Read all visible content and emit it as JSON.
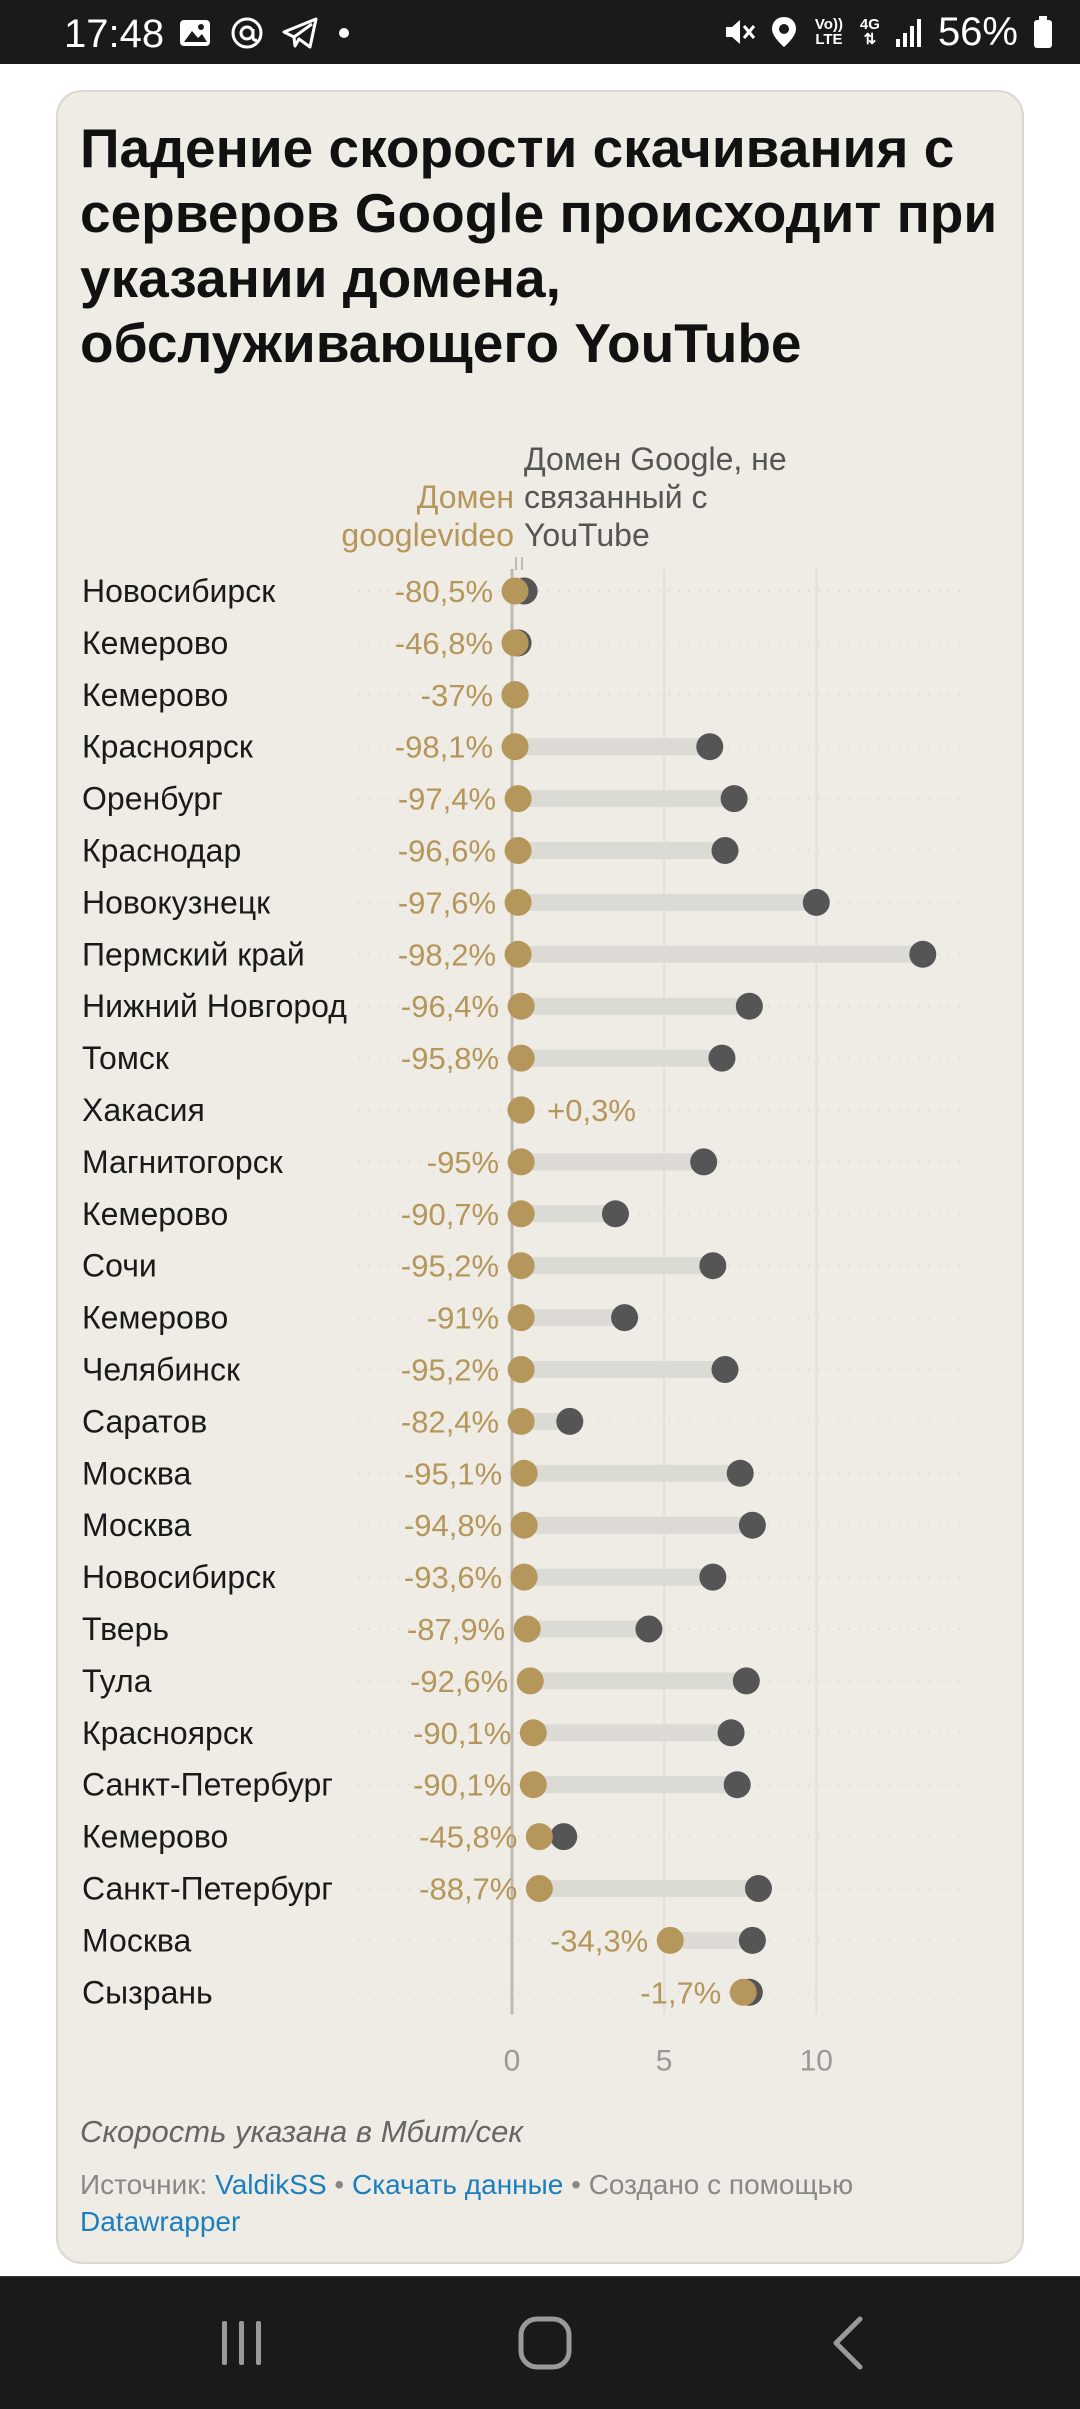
{
  "status_bar": {
    "time": "17:48",
    "battery": "56%",
    "left_icons": [
      "image-icon",
      "at-icon",
      "telegram-icon",
      "dot-icon"
    ],
    "right_icons": [
      "mute-icon",
      "location-icon",
      "volte-icon",
      "4g-icon",
      "signal-icon",
      "battery-icon"
    ],
    "volte_label": "Vo)) LTE",
    "net_label": "4G"
  },
  "card": {
    "title": "Падение скорости скачивания с серверов Google происходит при указании домена, обслуживающего YouTube",
    "legend_gold": "Домен googlevideo",
    "legend_gray": "Домен Google, не связанный с YouTube",
    "note": "Скорость указана в Мбит/сек",
    "source_prefix": "Источник:",
    "source_link": "ValdikSS",
    "sep1": "•",
    "download_link": "Скачать данные",
    "sep2": "•",
    "made_with": "Создано с помощью",
    "datawrapper_link": "Datawrapper"
  },
  "chart_data": {
    "type": "dot-range",
    "xlim": [
      0,
      14
    ],
    "x_ticks": [
      "0",
      "5",
      "10"
    ],
    "x_tick_values": [
      0,
      5,
      10
    ],
    "colors": {
      "googlevideo": "#b5965b",
      "google": "#555555",
      "range": "#dcdad4",
      "grid": "#e2dfd8"
    },
    "series": [
      {
        "name": "Домен googlevideo",
        "key": "googlevideo"
      },
      {
        "name": "Домен Google, не связанный с YouTube",
        "key": "google"
      }
    ],
    "rows": [
      {
        "city": "Новосибирск",
        "pct": "-80,5%",
        "googlevideo": 0.1,
        "google": 0.4
      },
      {
        "city": "Кемерово",
        "pct": "-46,8%",
        "googlevideo": 0.1,
        "google": 0.2
      },
      {
        "city": "Кемерово",
        "pct": "-37%",
        "googlevideo": 0.1,
        "google": 0.1
      },
      {
        "city": "Красноярск",
        "pct": "-98,1%",
        "googlevideo": 0.1,
        "google": 6.5
      },
      {
        "city": "Оренбург",
        "pct": "-97,4%",
        "googlevideo": 0.2,
        "google": 7.3
      },
      {
        "city": "Краснодар",
        "pct": "-96,6%",
        "googlevideo": 0.2,
        "google": 7.0
      },
      {
        "city": "Новокузнецк",
        "pct": "-97,6%",
        "googlevideo": 0.2,
        "google": 10.0
      },
      {
        "city": "Пермский край",
        "pct": "-98,2%",
        "googlevideo": 0.2,
        "google": 13.5
      },
      {
        "city": "Нижний Новгород",
        "pct": "-96,4%",
        "googlevideo": 0.3,
        "google": 7.8
      },
      {
        "city": "Томск",
        "pct": "-95,8%",
        "googlevideo": 0.3,
        "google": 6.9
      },
      {
        "city": "Хакасия",
        "pct": "+0,3%",
        "googlevideo": 0.3,
        "google": 0.3
      },
      {
        "city": "Магнитогорск",
        "pct": "-95%",
        "googlevideo": 0.3,
        "google": 6.3
      },
      {
        "city": "Кемерово",
        "pct": "-90,7%",
        "googlevideo": 0.3,
        "google": 3.4
      },
      {
        "city": "Сочи",
        "pct": "-95,2%",
        "googlevideo": 0.3,
        "google": 6.6
      },
      {
        "city": "Кемерово",
        "pct": "-91%",
        "googlevideo": 0.3,
        "google": 3.7
      },
      {
        "city": "Челябинск",
        "pct": "-95,2%",
        "googlevideo": 0.3,
        "google": 7.0
      },
      {
        "city": "Саратов",
        "pct": "-82,4%",
        "googlevideo": 0.3,
        "google": 1.9
      },
      {
        "city": "Москва",
        "pct": "-95,1%",
        "googlevideo": 0.4,
        "google": 7.5
      },
      {
        "city": "Москва",
        "pct": "-94,8%",
        "googlevideo": 0.4,
        "google": 7.9
      },
      {
        "city": "Новосибирск",
        "pct": "-93,6%",
        "googlevideo": 0.4,
        "google": 6.6
      },
      {
        "city": "Тверь",
        "pct": "-87,9%",
        "googlevideo": 0.5,
        "google": 4.5
      },
      {
        "city": "Тула",
        "pct": "-92,6%",
        "googlevideo": 0.6,
        "google": 7.7
      },
      {
        "city": "Красноярск",
        "pct": "-90,1%",
        "googlevideo": 0.7,
        "google": 7.2
      },
      {
        "city": "Санкт-Петербург",
        "pct": "-90,1%",
        "googlevideo": 0.7,
        "google": 7.4
      },
      {
        "city": "Кемерово",
        "pct": "-45,8%",
        "googlevideo": 0.9,
        "google": 1.7
      },
      {
        "city": "Санкт-Петербург",
        "pct": "-88,7%",
        "googlevideo": 0.9,
        "google": 8.1
      },
      {
        "city": "Москва",
        "pct": "-34,3%",
        "googlevideo": 5.2,
        "google": 7.9
      },
      {
        "city": "Сызрань",
        "pct": "-1,7%",
        "googlevideo": 7.6,
        "google": 7.8
      }
    ]
  }
}
